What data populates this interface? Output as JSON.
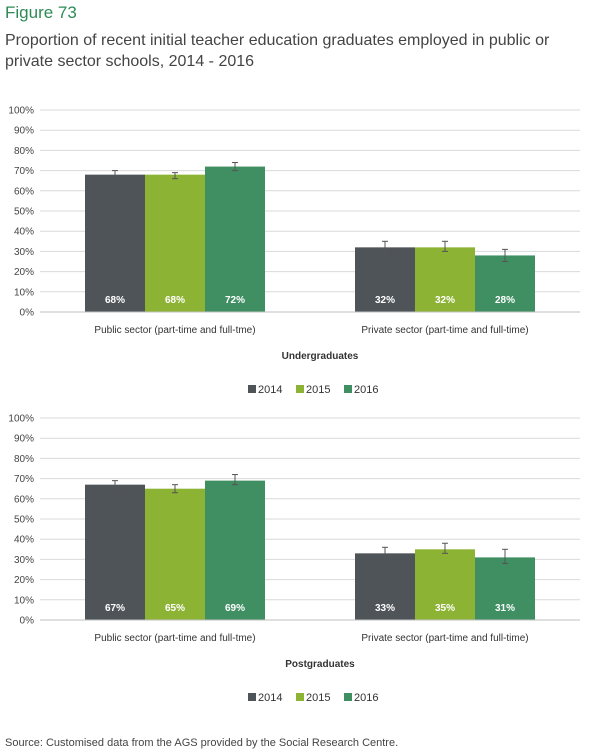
{
  "figure_label": "Figure 73",
  "title": "Proportion of recent initial teacher education graduates employed in public or private sector schools, 2014 - 2016",
  "source": "Source: Customised data from the AGS provided by the Social Research Centre.",
  "colors": {
    "2014": "#4f5459",
    "2015": "#8db334",
    "2016": "#3f8f63",
    "gridline": "#d9d9d9",
    "accent": "#2e8b57"
  },
  "chart_data": [
    {
      "type": "bar",
      "title": "",
      "subtitle": "Undergraduates",
      "categories": [
        "Public sector (part-time and full-tme)",
        "Private sector (part-time and full-time)"
      ],
      "series": [
        {
          "name": "2014",
          "values": [
            68,
            32
          ],
          "labels": [
            "68%",
            "32%"
          ],
          "error": [
            [
              67,
              70
            ],
            [
              29,
              35
            ]
          ]
        },
        {
          "name": "2015",
          "values": [
            68,
            32
          ],
          "labels": [
            "68%",
            "32%"
          ],
          "error": [
            [
              66,
              69
            ],
            [
              30,
              35
            ]
          ]
        },
        {
          "name": "2016",
          "values": [
            72,
            28
          ],
          "labels": [
            "72%",
            "28%"
          ],
          "error": [
            [
              70,
              74
            ],
            [
              25,
              31
            ]
          ]
        }
      ],
      "yticks": [
        "0%",
        "10%",
        "20%",
        "30%",
        "40%",
        "50%",
        "60%",
        "70%",
        "80%",
        "90%",
        "100%"
      ],
      "ylim": [
        0,
        100
      ],
      "grid": true,
      "legend": "bottom"
    },
    {
      "type": "bar",
      "title": "",
      "subtitle": "Postgraduates",
      "categories": [
        "Public sector (part-time and full-tme)",
        "Private sector (part-time and full-time)"
      ],
      "series": [
        {
          "name": "2014",
          "values": [
            67,
            33
          ],
          "labels": [
            "67%",
            "33%"
          ],
          "error": [
            [
              64,
              69
            ],
            [
              31,
              36
            ]
          ]
        },
        {
          "name": "2015",
          "values": [
            65,
            35
          ],
          "labels": [
            "65%",
            "35%"
          ],
          "error": [
            [
              63,
              67
            ],
            [
              33,
              38
            ]
          ]
        },
        {
          "name": "2016",
          "values": [
            69,
            31
          ],
          "labels": [
            "69%",
            "31%"
          ],
          "error": [
            [
              67,
              72
            ],
            [
              28,
              35
            ]
          ]
        }
      ],
      "yticks": [
        "0%",
        "10%",
        "20%",
        "30%",
        "40%",
        "50%",
        "60%",
        "70%",
        "80%",
        "90%",
        "100%"
      ],
      "ylim": [
        0,
        100
      ],
      "grid": true,
      "legend": "bottom"
    }
  ]
}
